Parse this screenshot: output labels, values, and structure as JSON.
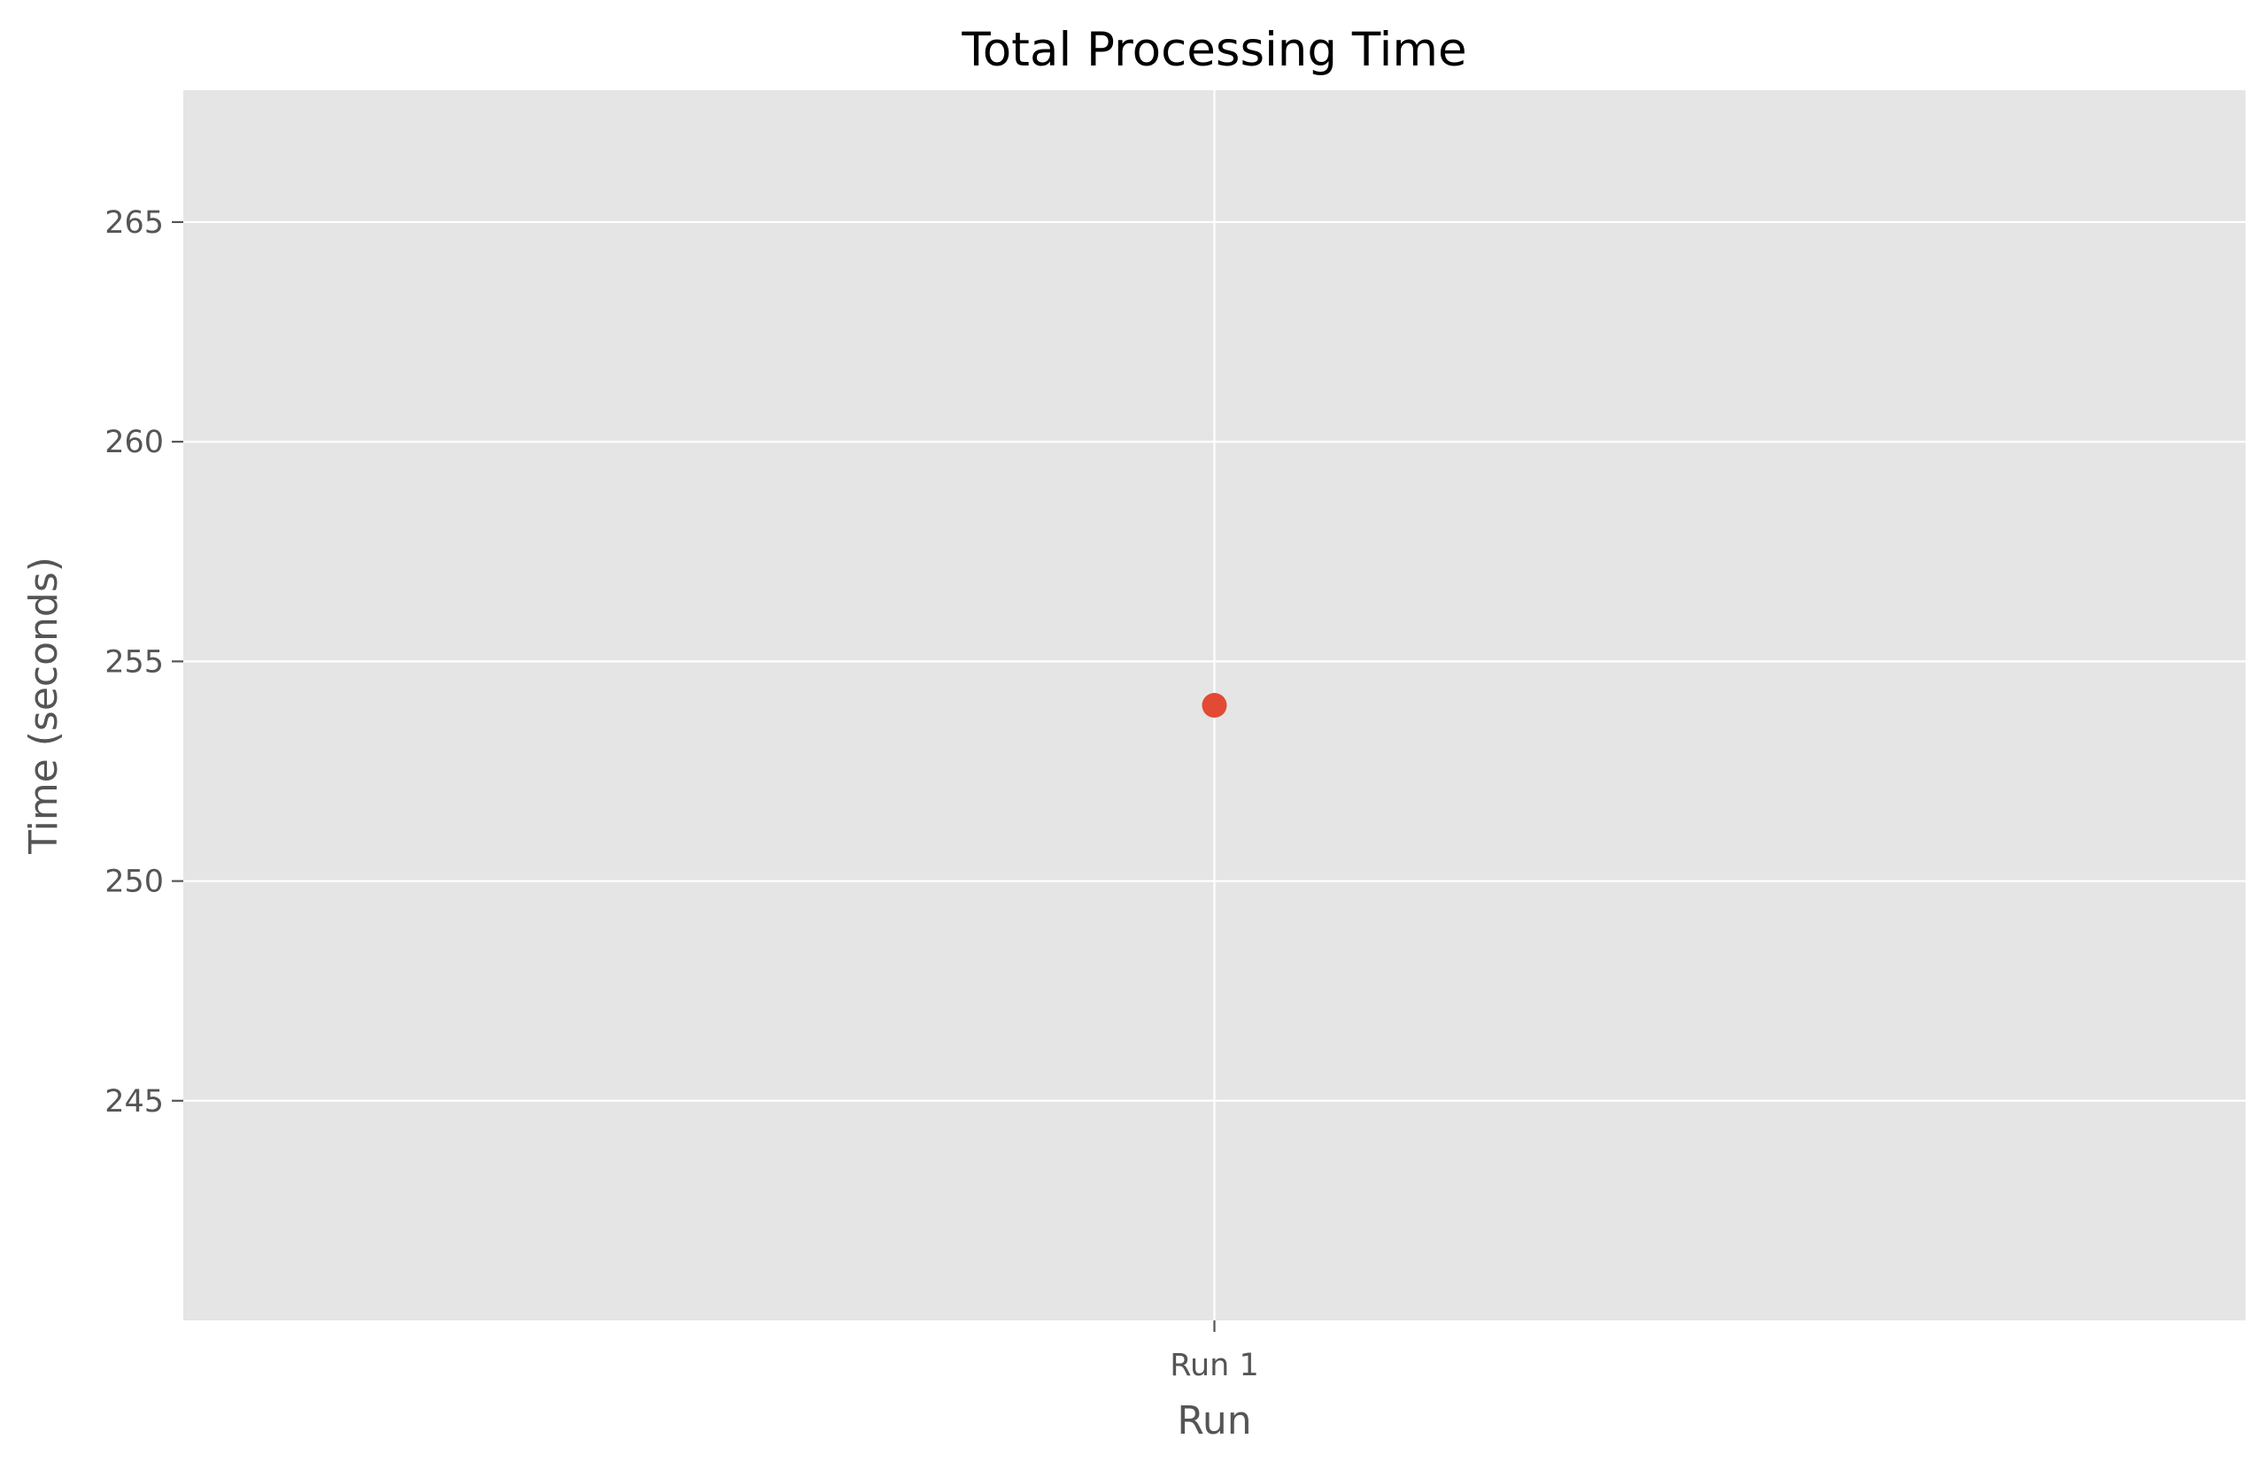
{
  "chart_data": {
    "type": "scatter",
    "title": "Total Processing Time",
    "xlabel": "Run",
    "ylabel": "Time (seconds)",
    "categories": [
      "Run 1"
    ],
    "series": [
      {
        "values": [
          254
        ]
      }
    ],
    "ylim": [
      240,
      268
    ],
    "yticks": [
      245,
      250,
      255,
      260,
      265
    ],
    "grid": true,
    "legend": "none",
    "colors": {
      "background": "#e5e5e5",
      "grid": "#ffffff",
      "marker": "#e24a33",
      "tick": "#555555"
    }
  }
}
